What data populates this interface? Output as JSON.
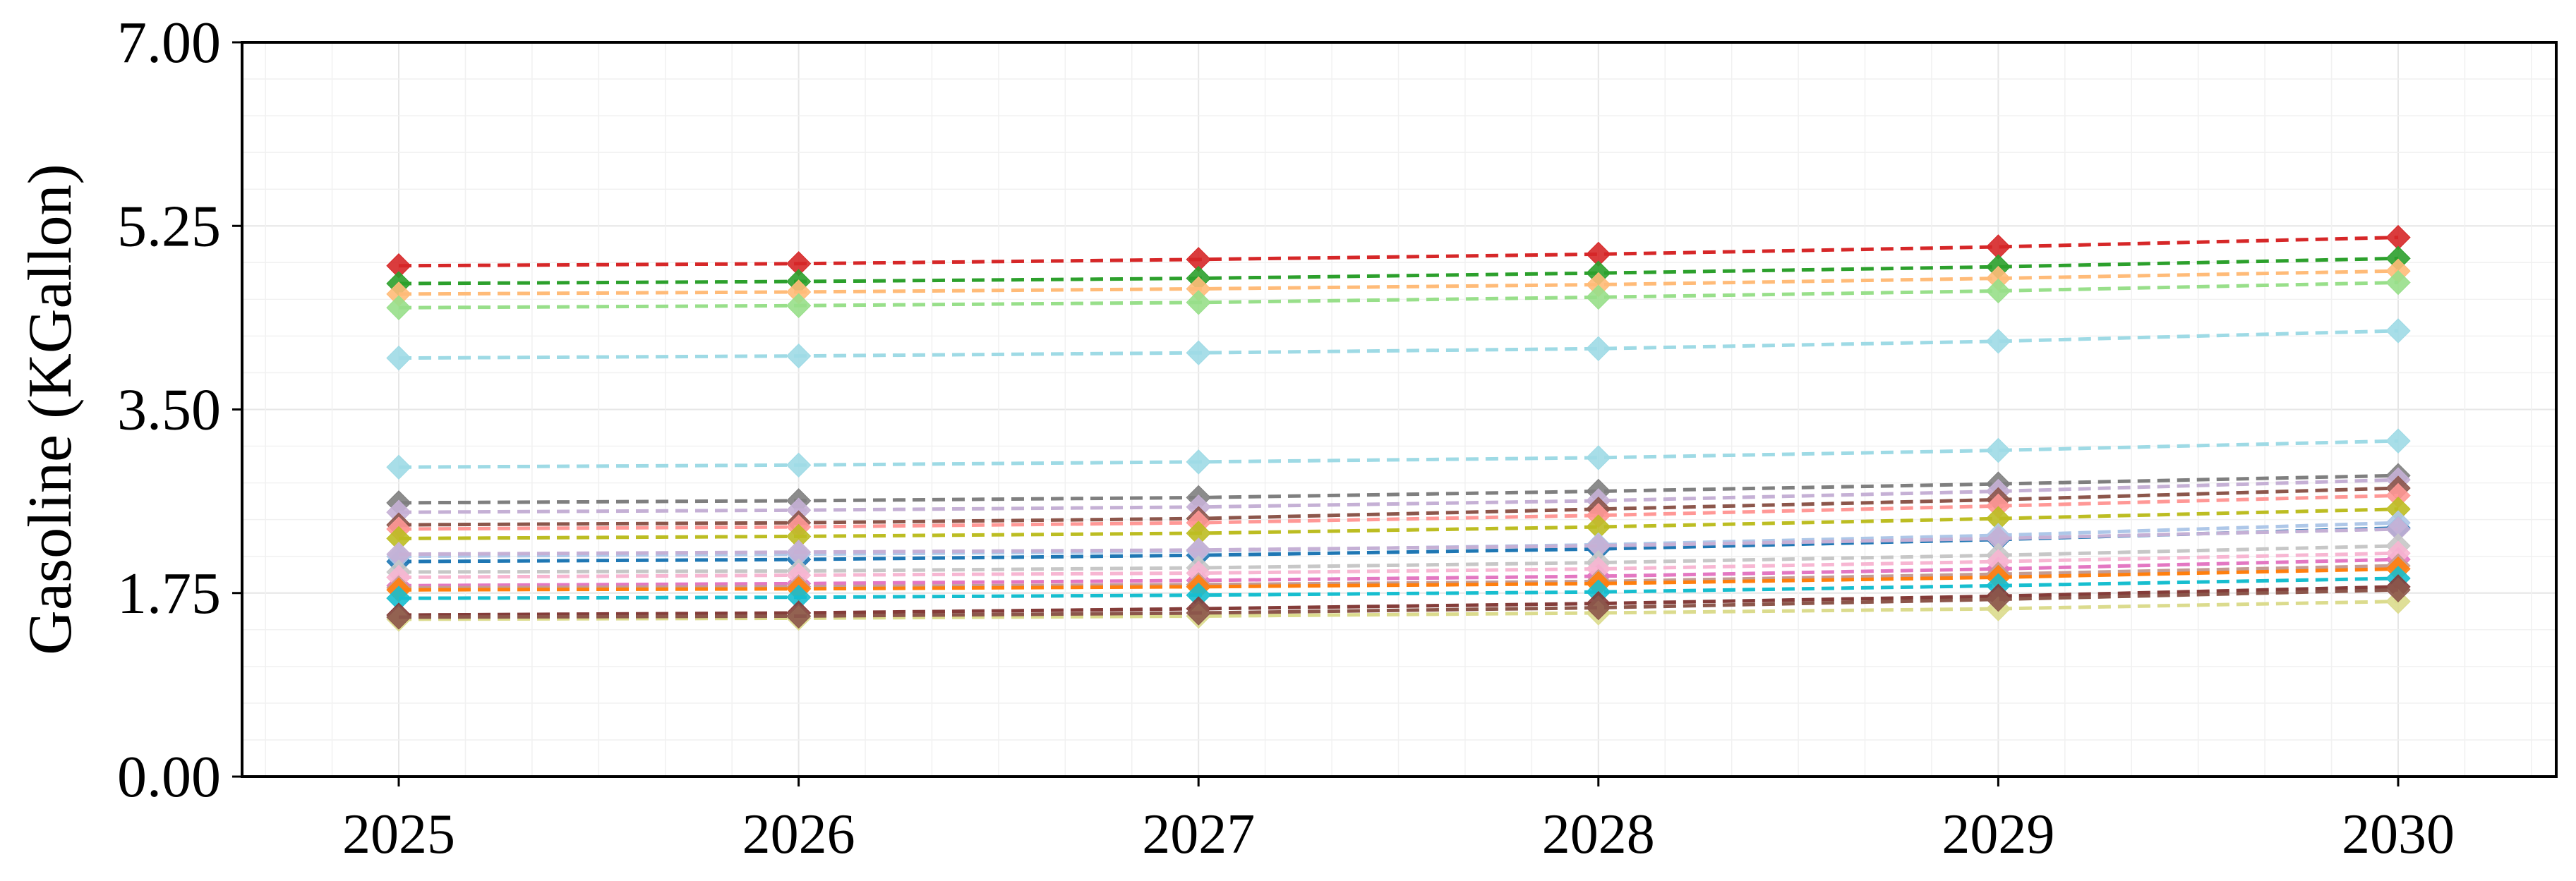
{
  "chart_data": {
    "type": "line",
    "title": "",
    "xlabel": "",
    "ylabel": "Gasoline (KGallon)",
    "x": [
      "2025",
      "2026",
      "2027",
      "2028",
      "2029",
      "2030"
    ],
    "x_tick_labels": [
      "2025",
      "2026",
      "2027",
      "2028",
      "2029",
      "2030"
    ],
    "ylim": [
      0,
      7
    ],
    "y_ticks": [
      0,
      1.75,
      3.5,
      5.25,
      7
    ],
    "y_tick_labels": [
      "0.00",
      "1.75",
      "3.50",
      "5.25",
      "7.00"
    ],
    "grid": true,
    "legend": "none",
    "line_style": "dashed",
    "marker": "diamond",
    "series": [
      {
        "color": "#d62728",
        "values": [
          4.87,
          4.89,
          4.93,
          4.98,
          5.05,
          5.14
        ]
      },
      {
        "color": "#2ca02c",
        "values": [
          4.7,
          4.72,
          4.75,
          4.8,
          4.86,
          4.94
        ]
      },
      {
        "color": "#ffbb78",
        "values": [
          4.6,
          4.62,
          4.65,
          4.69,
          4.75,
          4.82
        ]
      },
      {
        "color": "#98df8a",
        "values": [
          4.47,
          4.49,
          4.52,
          4.57,
          4.63,
          4.71
        ]
      },
      {
        "color": "#9edae5",
        "values": [
          3.99,
          4.01,
          4.04,
          4.08,
          4.15,
          4.25
        ]
      },
      {
        "color": "#9edae5",
        "values": [
          2.95,
          2.97,
          3.0,
          3.04,
          3.11,
          3.2
        ]
      },
      {
        "color": "#7f7f7f",
        "values": [
          2.61,
          2.63,
          2.66,
          2.72,
          2.79,
          2.87
        ]
      },
      {
        "color": "#c5b0d5",
        "values": [
          2.52,
          2.54,
          2.57,
          2.63,
          2.72,
          2.83
        ]
      },
      {
        "color": "#8c564b",
        "values": [
          2.4,
          2.42,
          2.46,
          2.55,
          2.64,
          2.75
        ]
      },
      {
        "color": "#ff9896",
        "values": [
          2.36,
          2.38,
          2.42,
          2.49,
          2.58,
          2.68
        ]
      },
      {
        "color": "#bcbd22",
        "values": [
          2.27,
          2.29,
          2.32,
          2.38,
          2.46,
          2.55
        ]
      },
      {
        "color": "#1f77b4",
        "values": [
          2.05,
          2.07,
          2.11,
          2.17,
          2.26,
          2.37
        ]
      },
      {
        "color": "#aec7e8",
        "values": [
          2.1,
          2.12,
          2.15,
          2.21,
          2.3,
          2.42
        ]
      },
      {
        "color": "#c5b0d5",
        "values": [
          2.12,
          2.14,
          2.16,
          2.2,
          2.27,
          2.36
        ]
      },
      {
        "color": "#c7c7c7",
        "values": [
          1.95,
          1.96,
          1.99,
          2.04,
          2.11,
          2.2
        ]
      },
      {
        "color": "#e377c2",
        "values": [
          1.82,
          1.84,
          1.87,
          1.91,
          1.98,
          2.07
        ]
      },
      {
        "color": "#f7b6d2",
        "values": [
          1.9,
          1.92,
          1.94,
          1.98,
          2.05,
          2.13
        ]
      },
      {
        "color": "#c49c94",
        "values": [
          1.8,
          1.81,
          1.83,
          1.86,
          1.93,
          2.01
        ]
      },
      {
        "color": "#ff7f0e",
        "values": [
          1.78,
          1.79,
          1.81,
          1.84,
          1.9,
          1.98
        ]
      },
      {
        "color": "#17becf",
        "values": [
          1.7,
          1.71,
          1.73,
          1.76,
          1.82,
          1.89
        ]
      },
      {
        "color": "#843c39",
        "values": [
          1.54,
          1.56,
          1.6,
          1.65,
          1.72,
          1.81
        ]
      },
      {
        "color": "#dbdb8d",
        "values": [
          1.5,
          1.51,
          1.53,
          1.56,
          1.6,
          1.67
        ]
      },
      {
        "color": "#8c564b",
        "values": [
          1.52,
          1.53,
          1.56,
          1.61,
          1.69,
          1.78
        ]
      }
    ]
  }
}
